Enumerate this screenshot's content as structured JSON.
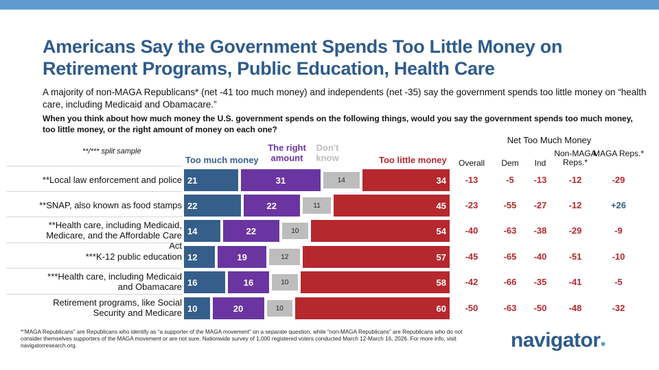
{
  "title": "Americans Say the Government Spends Too Little Money on Retirement Programs, Public Education, Health Care",
  "subtitle": "A majority of non-MAGA Republicans* (net -41 too much money) and independents (net -35) say the government spends too little money on “health care, including Medicaid and Obamacare.”",
  "question": "When you think about how much money the U.S. government spends on the following things, would you say the government spends too much money, too little money, or the right amount of money on each one?",
  "split_note": "**/*** split sample",
  "net_title": "Net Too Much Money",
  "footnote": "*“MAGA Republicans” are Republicans who identify as “a supporter of the MAGA movement” on a separate question, while “non-MAGA Republicans” are Republicans who do not consider themselves supporters of the MAGA movement or are not sure. Nationwide survey of 1,000 registered voters conducted March 12-March 16, 2026. For more info, visit navigatorresearch.org.",
  "logo": "navigator",
  "colors": {
    "too_much": "#355f8a",
    "right": "#6a35a0",
    "dont_know": "#bdbdbd",
    "too_little": "#b5282e",
    "net_negative": "#b5282e",
    "net_positive": "#355f8a"
  },
  "chart_data": {
    "type": "bar",
    "orientation": "horizontal",
    "stacked": true,
    "series": [
      {
        "name": "Too much money",
        "values": [
          21,
          22,
          14,
          12,
          16,
          10
        ]
      },
      {
        "name": "The right amount",
        "values": [
          31,
          22,
          22,
          19,
          16,
          20
        ]
      },
      {
        "name": "Don't know",
        "values": [
          14,
          11,
          10,
          12,
          10,
          10
        ]
      },
      {
        "name": "Too little money",
        "values": [
          34,
          45,
          54,
          57,
          58,
          60
        ]
      }
    ],
    "categories": [
      "**Local law enforcement and police",
      "**SNAP, also known as food stamps",
      "**Health care, including Medicaid, Medicare, and the Affordable Care Act",
      "***K-12 public education",
      "***Health care, including Medicaid and Obamacare",
      "Retirement programs, like Social Security and Medicare"
    ],
    "net_columns": [
      "Overall",
      "Dem",
      "Ind",
      "Non-MAGA Reps.*",
      "MAGA Reps.*"
    ],
    "net_values": [
      [
        "-13",
        "-5",
        "-13",
        "-12",
        "-29"
      ],
      [
        "-23",
        "-55",
        "-27",
        "-12",
        "+26"
      ],
      [
        "-40",
        "-63",
        "-38",
        "-29",
        "-9"
      ],
      [
        "-45",
        "-65",
        "-40",
        "-51",
        "-10"
      ],
      [
        "-42",
        "-66",
        "-35",
        "-41",
        "-5"
      ],
      [
        "-50",
        "-63",
        "-50",
        "-48",
        "-32"
      ]
    ]
  }
}
